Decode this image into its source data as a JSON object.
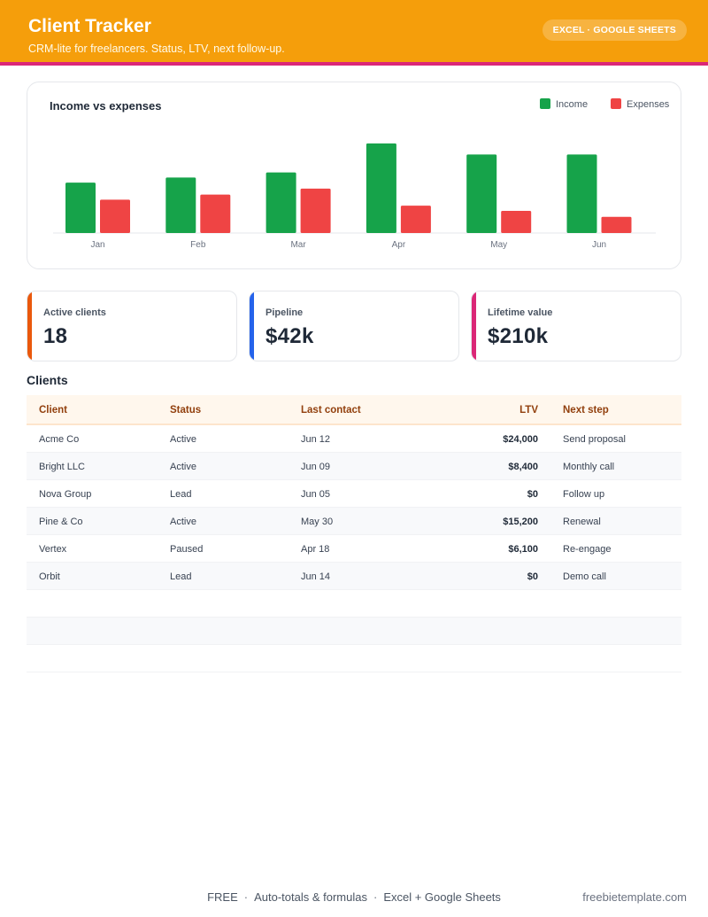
{
  "header": {
    "title": "Client Tracker",
    "subtitle": "CRM-lite for freelancers. Status, LTV, next follow-up.",
    "badge": "EXCEL · GOOGLE SHEETS"
  },
  "colors": {
    "header": "#f59e0b",
    "stripe": "#db2777",
    "income": "#16a34a",
    "expenses": "#ef4444",
    "kpi_active": "#ea580c",
    "kpi_pipeline": "#2563eb",
    "kpi_ltv": "#db2777"
  },
  "chart_data": {
    "type": "bar",
    "title": "Income vs expenses",
    "categories": [
      "Jan",
      "Feb",
      "Mar",
      "Apr",
      "May",
      "Jun"
    ],
    "series": [
      {
        "name": "Income",
        "color": "#16a34a",
        "values": [
          59,
          65,
          71,
          105,
          92,
          92
        ]
      },
      {
        "name": "Expenses",
        "color": "#ef4444",
        "values": [
          39,
          45,
          52,
          32,
          26,
          19
        ]
      }
    ],
    "xlabel": "",
    "ylabel": "",
    "ylim": [
      0,
      110
    ],
    "grid": false,
    "legend": "top-right"
  },
  "kpis": [
    {
      "label": "Active clients",
      "value": "18"
    },
    {
      "label": "Pipeline",
      "value": "$42k"
    },
    {
      "label": "Lifetime value",
      "value": "$210k"
    }
  ],
  "table": {
    "title": "Clients",
    "columns": [
      "Client",
      "Status",
      "Last contact",
      "LTV",
      "Next step"
    ],
    "rows": [
      [
        "Acme Co",
        "Active",
        "Jun 12",
        "$24,000",
        "Send proposal"
      ],
      [
        "Bright LLC",
        "Active",
        "Jun 09",
        "$8,400",
        "Monthly call"
      ],
      [
        "Nova Group",
        "Lead",
        "Jun 05",
        "$0",
        "Follow up"
      ],
      [
        "Pine & Co",
        "Active",
        "May 30",
        "$15,200",
        "Renewal"
      ],
      [
        "Vertex",
        "Paused",
        "Apr 18",
        "$6,100",
        "Re-engage"
      ],
      [
        "Orbit",
        "Lead",
        "Jun 14",
        "$0",
        "Demo call"
      ]
    ]
  },
  "footer": {
    "items": [
      "FREE",
      "Auto-totals & formulas",
      "Excel + Google Sheets"
    ],
    "site": "freebietemplate.com"
  }
}
